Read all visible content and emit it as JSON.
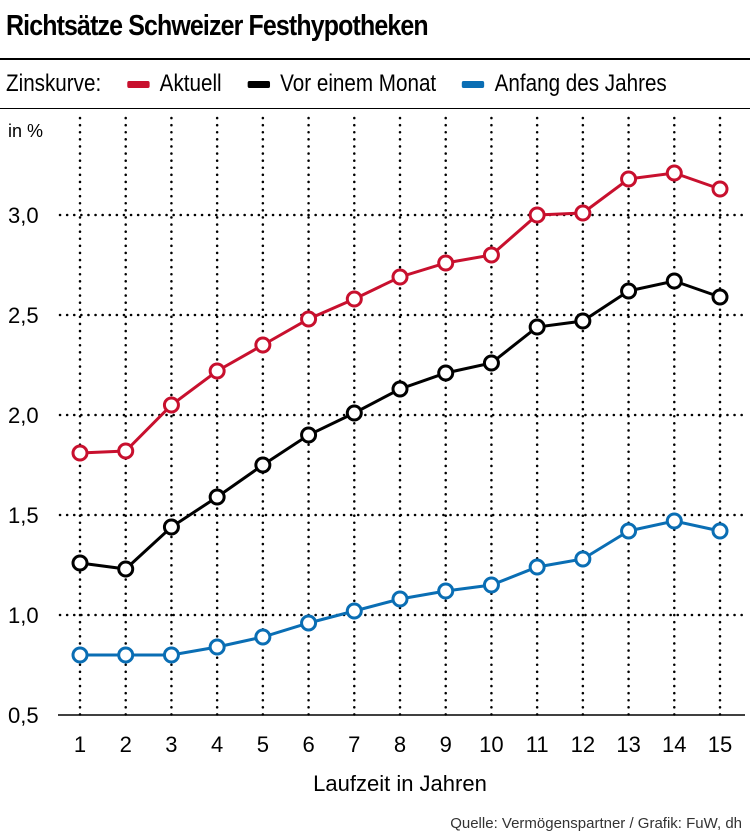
{
  "chart_data": {
    "type": "line",
    "title": "Richtsätze Schweizer Festhypotheken",
    "legend_title": "Zinskurve:",
    "legend_placement": "top",
    "ylabel": "in %",
    "xlabel": "Laufzeit in Jahren",
    "x": [
      1,
      2,
      3,
      4,
      5,
      6,
      7,
      8,
      9,
      10,
      11,
      12,
      13,
      14,
      15
    ],
    "ylim": [
      0.5,
      3.3
    ],
    "yticks": [
      "0,5",
      "1,0",
      "1,5",
      "2,0",
      "2,5",
      "3,0"
    ],
    "ytick_values": [
      0.5,
      1.0,
      1.5,
      2.0,
      2.5,
      3.0
    ],
    "grid": true,
    "series": [
      {
        "name": "Aktuell",
        "color": "#c8102e",
        "values": [
          1.81,
          1.82,
          2.05,
          2.22,
          2.35,
          2.48,
          2.58,
          2.69,
          2.76,
          2.8,
          3.0,
          3.01,
          3.18,
          3.21,
          3.13
        ]
      },
      {
        "name": "Vor einem Monat",
        "color": "#000000",
        "values": [
          1.26,
          1.23,
          1.44,
          1.59,
          1.75,
          1.9,
          2.01,
          2.13,
          2.21,
          2.26,
          2.44,
          2.47,
          2.62,
          2.67,
          2.59
        ]
      },
      {
        "name": "Anfang des Jahres",
        "color": "#0a6eb4",
        "values": [
          0.8,
          0.8,
          0.8,
          0.84,
          0.89,
          0.96,
          1.02,
          1.08,
          1.12,
          1.15,
          1.24,
          1.28,
          1.42,
          1.47,
          1.42
        ]
      }
    ]
  },
  "source": "Quelle: Vermögenspartner / Grafik: FuW, dh"
}
